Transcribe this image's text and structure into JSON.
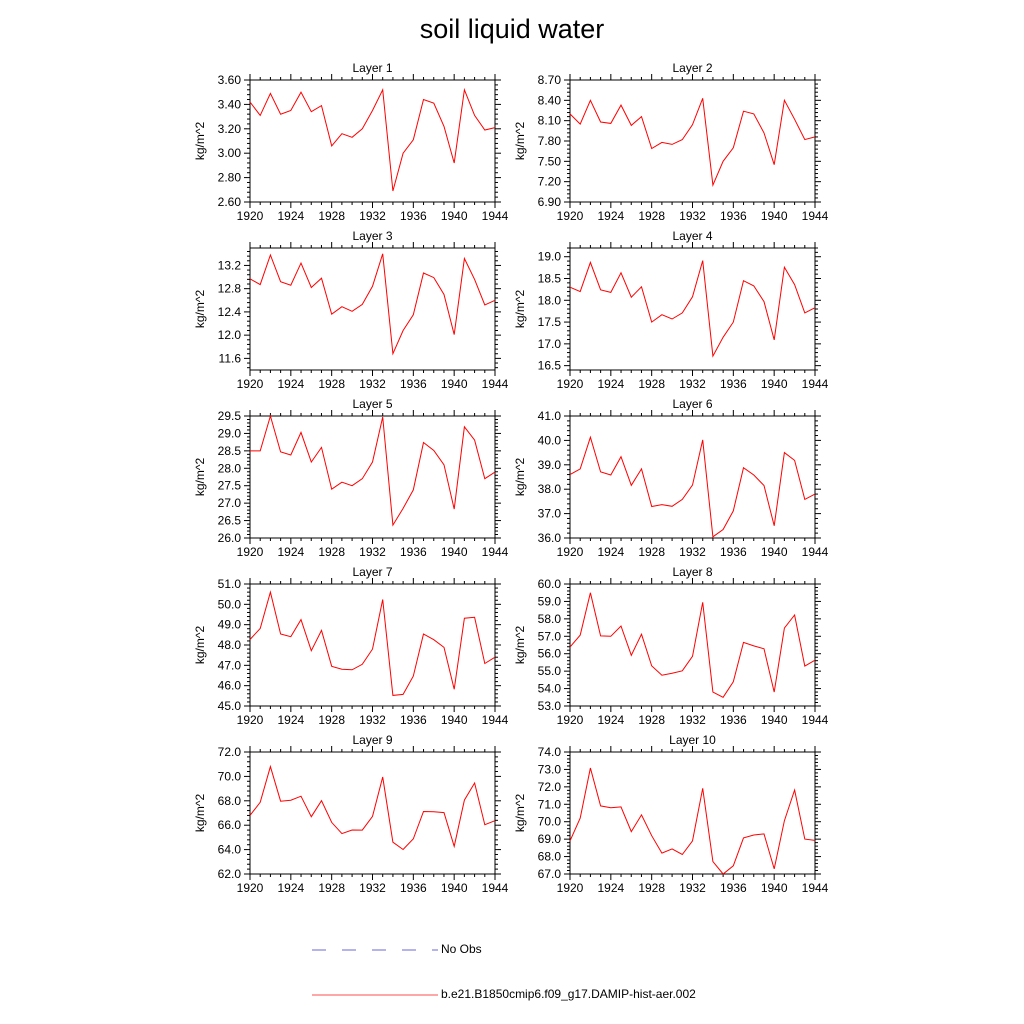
{
  "title": "soil liquid water",
  "legend": {
    "items": [
      {
        "label": "No Obs",
        "color": "#6a6ad4",
        "style": "dashed"
      },
      {
        "label": "b.e21.B1850cmip6.f09_g17.DAMIP-hist-aer.002",
        "color": "#ff4d4d",
        "style": "solid"
      }
    ]
  },
  "chart_data": [
    {
      "type": "line",
      "title": "Layer 1",
      "xlabel": "",
      "ylabel": "kg/m^2",
      "xlim": [
        1920,
        1944
      ],
      "ylim": [
        2.6,
        3.6
      ],
      "xticks": [
        "1920",
        "1924",
        "1928",
        "1932",
        "1936",
        "1940",
        "1944"
      ],
      "yticks": [
        "2.60",
        "2.80",
        "3.00",
        "3.20",
        "3.40",
        "3.60"
      ],
      "series": [
        {
          "name": "b.e21.B1850cmip6.f09_g17.DAMIP-hist-aer.002",
          "color": "#ff0000",
          "x": [
            1920,
            1921,
            1922,
            1923,
            1924,
            1925,
            1926,
            1927,
            1928,
            1929,
            1930,
            1931,
            1932,
            1933,
            1934,
            1935,
            1936,
            1937,
            1938,
            1939,
            1940,
            1941,
            1942,
            1943,
            1944
          ],
          "y": [
            3.42,
            3.31,
            3.49,
            3.32,
            3.35,
            3.5,
            3.34,
            3.39,
            3.06,
            3.16,
            3.13,
            3.2,
            3.35,
            3.52,
            2.69,
            3.0,
            3.11,
            3.44,
            3.41,
            3.22,
            2.92,
            3.52,
            3.31,
            3.19,
            3.21
          ]
        }
      ]
    },
    {
      "type": "line",
      "title": "Layer 2",
      "xlabel": "",
      "ylabel": "kg/m^2",
      "xlim": [
        1920,
        1944
      ],
      "ylim": [
        6.9,
        8.7
      ],
      "xticks": [
        "1920",
        "1924",
        "1928",
        "1932",
        "1936",
        "1940",
        "1944"
      ],
      "yticks": [
        "6.90",
        "7.20",
        "7.50",
        "7.80",
        "8.10",
        "8.40",
        "8.70"
      ],
      "series": [
        {
          "name": "b.e21.B1850cmip6.f09_g17.DAMIP-hist-aer.002",
          "color": "#ff0000",
          "x": [
            1920,
            1921,
            1922,
            1923,
            1924,
            1925,
            1926,
            1927,
            1928,
            1929,
            1930,
            1931,
            1932,
            1933,
            1934,
            1935,
            1936,
            1937,
            1938,
            1939,
            1940,
            1941,
            1942,
            1943,
            1944
          ],
          "y": [
            8.2,
            8.05,
            8.4,
            8.08,
            8.06,
            8.33,
            8.03,
            8.16,
            7.69,
            7.78,
            7.75,
            7.82,
            8.04,
            8.43,
            7.15,
            7.5,
            7.7,
            8.24,
            8.2,
            7.92,
            7.45,
            8.4,
            8.12,
            7.82,
            7.86
          ]
        }
      ]
    },
    {
      "type": "line",
      "title": "Layer 3",
      "xlabel": "",
      "ylabel": "kg/m^2",
      "xlim": [
        1920,
        1944
      ],
      "ylim": [
        11.4,
        13.5
      ],
      "xticks": [
        "1920",
        "1924",
        "1928",
        "1932",
        "1936",
        "1940",
        "1944"
      ],
      "yticks": [
        "11.6",
        "12.0",
        "12.4",
        "12.8",
        "13.2"
      ],
      "series": [
        {
          "name": "b.e21.B1850cmip6.f09_g17.DAMIP-hist-aer.002",
          "color": "#ff0000",
          "x": [
            1920,
            1921,
            1922,
            1923,
            1924,
            1925,
            1926,
            1927,
            1928,
            1929,
            1930,
            1931,
            1932,
            1933,
            1934,
            1935,
            1936,
            1937,
            1938,
            1939,
            1940,
            1941,
            1942,
            1943,
            1944
          ],
          "y": [
            12.97,
            12.87,
            13.38,
            12.92,
            12.86,
            13.24,
            12.82,
            12.98,
            12.36,
            12.49,
            12.41,
            12.53,
            12.84,
            13.4,
            11.68,
            12.08,
            12.35,
            13.07,
            12.99,
            12.7,
            12.01,
            13.32,
            12.96,
            12.52,
            12.6
          ]
        }
      ]
    },
    {
      "type": "line",
      "title": "Layer 4",
      "xlabel": "",
      "ylabel": "kg/m^2",
      "xlim": [
        1920,
        1944
      ],
      "ylim": [
        16.4,
        19.2
      ],
      "xticks": [
        "1920",
        "1924",
        "1928",
        "1932",
        "1936",
        "1940",
        "1944"
      ],
      "yticks": [
        "16.5",
        "17.0",
        "17.5",
        "18.0",
        "18.5",
        "19.0"
      ],
      "series": [
        {
          "name": "b.e21.B1850cmip6.f09_g17.DAMIP-hist-aer.002",
          "color": "#ff0000",
          "x": [
            1920,
            1921,
            1922,
            1923,
            1924,
            1925,
            1926,
            1927,
            1928,
            1929,
            1930,
            1931,
            1932,
            1933,
            1934,
            1935,
            1936,
            1937,
            1938,
            1939,
            1940,
            1941,
            1942,
            1943,
            1944
          ],
          "y": [
            18.3,
            18.2,
            18.87,
            18.24,
            18.18,
            18.63,
            18.07,
            18.31,
            17.5,
            17.67,
            17.57,
            17.71,
            18.08,
            18.91,
            16.72,
            17.15,
            17.5,
            18.45,
            18.33,
            17.97,
            17.09,
            18.76,
            18.36,
            17.71,
            17.83
          ]
        }
      ]
    },
    {
      "type": "line",
      "title": "Layer 5",
      "xlabel": "",
      "ylabel": "kg/m^2",
      "xlim": [
        1920,
        1944
      ],
      "ylim": [
        26.0,
        29.5
      ],
      "xticks": [
        "1920",
        "1924",
        "1928",
        "1932",
        "1936",
        "1940",
        "1944"
      ],
      "yticks": [
        "26.0",
        "26.5",
        "27.0",
        "27.5",
        "28.0",
        "28.5",
        "29.0",
        "29.5"
      ],
      "series": [
        {
          "name": "b.e21.B1850cmip6.f09_g17.DAMIP-hist-aer.002",
          "color": "#ff0000",
          "x": [
            1920,
            1921,
            1922,
            1923,
            1924,
            1925,
            1926,
            1927,
            1928,
            1929,
            1930,
            1931,
            1932,
            1933,
            1934,
            1935,
            1936,
            1937,
            1938,
            1939,
            1940,
            1941,
            1942,
            1943,
            1944
          ],
          "y": [
            28.5,
            28.5,
            29.5,
            28.47,
            28.38,
            29.03,
            28.18,
            28.6,
            27.4,
            27.6,
            27.5,
            27.7,
            28.18,
            29.47,
            26.37,
            26.85,
            27.38,
            28.74,
            28.51,
            28.1,
            26.83,
            29.19,
            28.81,
            27.7,
            27.89
          ]
        }
      ]
    },
    {
      "type": "line",
      "title": "Layer 6",
      "xlabel": "",
      "ylabel": "kg/m^2",
      "xlim": [
        1920,
        1944
      ],
      "ylim": [
        36.0,
        41.0
      ],
      "xticks": [
        "1920",
        "1924",
        "1928",
        "1932",
        "1936",
        "1940",
        "1944"
      ],
      "yticks": [
        "36.0",
        "37.0",
        "38.0",
        "39.0",
        "40.0",
        "41.0"
      ],
      "series": [
        {
          "name": "b.e21.B1850cmip6.f09_g17.DAMIP-hist-aer.002",
          "color": "#ff0000",
          "x": [
            1920,
            1921,
            1922,
            1923,
            1924,
            1925,
            1926,
            1927,
            1928,
            1929,
            1930,
            1931,
            1932,
            1933,
            1934,
            1935,
            1936,
            1937,
            1938,
            1939,
            1940,
            1941,
            1942,
            1943,
            1944
          ],
          "y": [
            38.6,
            38.83,
            40.13,
            38.71,
            38.58,
            39.33,
            38.16,
            38.83,
            37.29,
            37.37,
            37.3,
            37.58,
            38.17,
            40.02,
            36.05,
            36.35,
            37.11,
            38.88,
            38.58,
            38.15,
            36.5,
            39.5,
            39.18,
            37.58,
            37.8
          ]
        }
      ]
    },
    {
      "type": "line",
      "title": "Layer 7",
      "xlabel": "",
      "ylabel": "kg/m^2",
      "xlim": [
        1920,
        1944
      ],
      "ylim": [
        45.0,
        51.0
      ],
      "xticks": [
        "1920",
        "1924",
        "1928",
        "1932",
        "1936",
        "1940",
        "1944"
      ],
      "yticks": [
        "45.0",
        "46.0",
        "47.0",
        "48.0",
        "49.0",
        "50.0",
        "51.0"
      ],
      "series": [
        {
          "name": "b.e21.B1850cmip6.f09_g17.DAMIP-hist-aer.002",
          "color": "#ff0000",
          "x": [
            1920,
            1921,
            1922,
            1923,
            1924,
            1925,
            1926,
            1927,
            1928,
            1929,
            1930,
            1931,
            1932,
            1933,
            1934,
            1935,
            1936,
            1937,
            1938,
            1939,
            1940,
            1941,
            1942,
            1943,
            1944
          ],
          "y": [
            48.27,
            48.81,
            50.6,
            48.54,
            48.41,
            49.25,
            47.72,
            48.72,
            46.95,
            46.81,
            46.78,
            47.05,
            47.8,
            50.24,
            45.52,
            45.57,
            46.47,
            48.54,
            48.26,
            47.88,
            45.82,
            49.32,
            49.36,
            47.09,
            47.4
          ]
        }
      ]
    },
    {
      "type": "line",
      "title": "Layer 8",
      "xlabel": "",
      "ylabel": "kg/m^2",
      "xlim": [
        1920,
        1944
      ],
      "ylim": [
        53.0,
        60.0
      ],
      "xticks": [
        "1920",
        "1924",
        "1928",
        "1932",
        "1936",
        "1940",
        "1944"
      ],
      "yticks": [
        "53.0",
        "54.0",
        "55.0",
        "56.0",
        "57.0",
        "58.0",
        "59.0",
        "60.0"
      ],
      "series": [
        {
          "name": "b.e21.B1850cmip6.f09_g17.DAMIP-hist-aer.002",
          "color": "#ff0000",
          "x": [
            1920,
            1921,
            1922,
            1923,
            1924,
            1925,
            1926,
            1927,
            1928,
            1929,
            1930,
            1931,
            1932,
            1933,
            1934,
            1935,
            1936,
            1937,
            1938,
            1939,
            1940,
            1941,
            1942,
            1943,
            1944
          ],
          "y": [
            56.38,
            57.07,
            59.5,
            57.02,
            57.0,
            57.59,
            55.91,
            57.12,
            55.3,
            54.77,
            54.88,
            55.02,
            55.85,
            58.95,
            53.8,
            53.5,
            54.39,
            56.65,
            56.45,
            56.28,
            53.8,
            57.47,
            58.22,
            55.29,
            55.63
          ]
        }
      ]
    },
    {
      "type": "line",
      "title": "Layer 9",
      "xlabel": "",
      "ylabel": "kg/m^2",
      "xlim": [
        1920,
        1944
      ],
      "ylim": [
        62.0,
        72.0
      ],
      "xticks": [
        "1920",
        "1924",
        "1928",
        "1932",
        "1936",
        "1940",
        "1944"
      ],
      "yticks": [
        "62.0",
        "64.0",
        "66.0",
        "68.0",
        "70.0",
        "72.0"
      ],
      "series": [
        {
          "name": "b.e21.B1850cmip6.f09_g17.DAMIP-hist-aer.002",
          "color": "#ff0000",
          "x": [
            1920,
            1921,
            1922,
            1923,
            1924,
            1925,
            1926,
            1927,
            1928,
            1929,
            1930,
            1931,
            1932,
            1933,
            1934,
            1935,
            1936,
            1937,
            1938,
            1939,
            1940,
            1941,
            1942,
            1943,
            1944
          ],
          "y": [
            66.8,
            67.88,
            70.8,
            67.97,
            68.05,
            68.38,
            66.7,
            68.01,
            66.23,
            65.31,
            65.61,
            65.6,
            66.72,
            69.95,
            64.61,
            64.01,
            64.88,
            67.12,
            67.1,
            67.03,
            64.26,
            68.06,
            69.46,
            66.04,
            66.37
          ]
        }
      ]
    },
    {
      "type": "line",
      "title": "Layer 10",
      "xlabel": "",
      "ylabel": "kg/m^2",
      "xlim": [
        1920,
        1944
      ],
      "ylim": [
        67.0,
        74.0
      ],
      "xticks": [
        "1920",
        "1924",
        "1928",
        "1932",
        "1936",
        "1940",
        "1944"
      ],
      "yticks": [
        "67.0",
        "68.0",
        "69.0",
        "70.0",
        "71.0",
        "72.0",
        "73.0",
        "74.0"
      ],
      "series": [
        {
          "name": "b.e21.B1850cmip6.f09_g17.DAMIP-hist-aer.002",
          "color": "#ff0000",
          "x": [
            1920,
            1921,
            1922,
            1923,
            1924,
            1925,
            1926,
            1927,
            1928,
            1929,
            1930,
            1931,
            1932,
            1933,
            1934,
            1935,
            1936,
            1937,
            1938,
            1939,
            1940,
            1941,
            1942,
            1943,
            1944
          ],
          "y": [
            68.9,
            70.21,
            73.08,
            70.91,
            70.8,
            70.85,
            69.43,
            70.39,
            69.2,
            68.2,
            68.44,
            68.12,
            68.9,
            71.92,
            67.71,
            67.0,
            67.47,
            69.07,
            69.24,
            69.3,
            67.29,
            70.06,
            71.82,
            69.0,
            68.93
          ]
        }
      ]
    }
  ]
}
